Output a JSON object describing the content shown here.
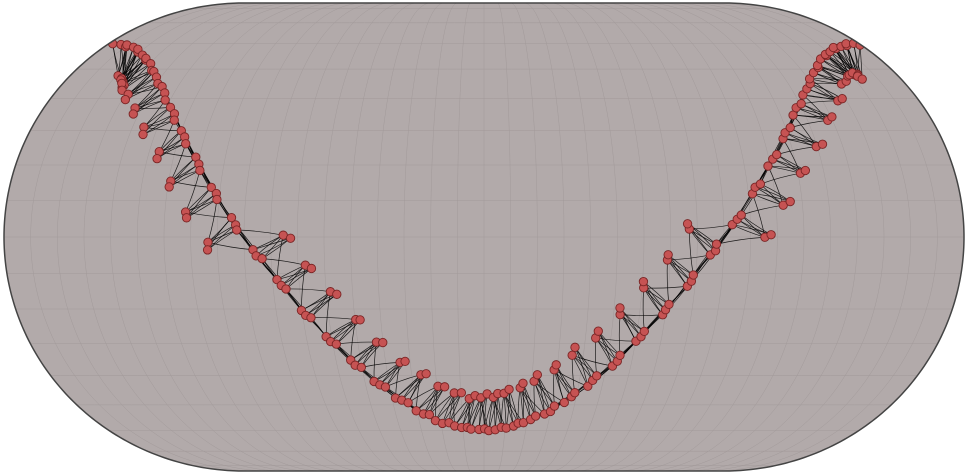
{
  "map": {
    "projection": "eckert-iv",
    "colors": {
      "background": "#ffffff",
      "land": "#b2aaaa",
      "outline": "#444444",
      "graticule": "#a29a9a",
      "edge": "#000000",
      "node_fill": "#c65353",
      "node_stroke": "#7a2525"
    },
    "graticule": {
      "lon_step_deg": 10,
      "lat_step_deg": 10
    },
    "track": {
      "start_lon_deg": -180,
      "end_lon_deg": 180,
      "lat_amplitude_deg": 60,
      "clusters": 44,
      "nodes_per_cluster": 5
    }
  }
}
